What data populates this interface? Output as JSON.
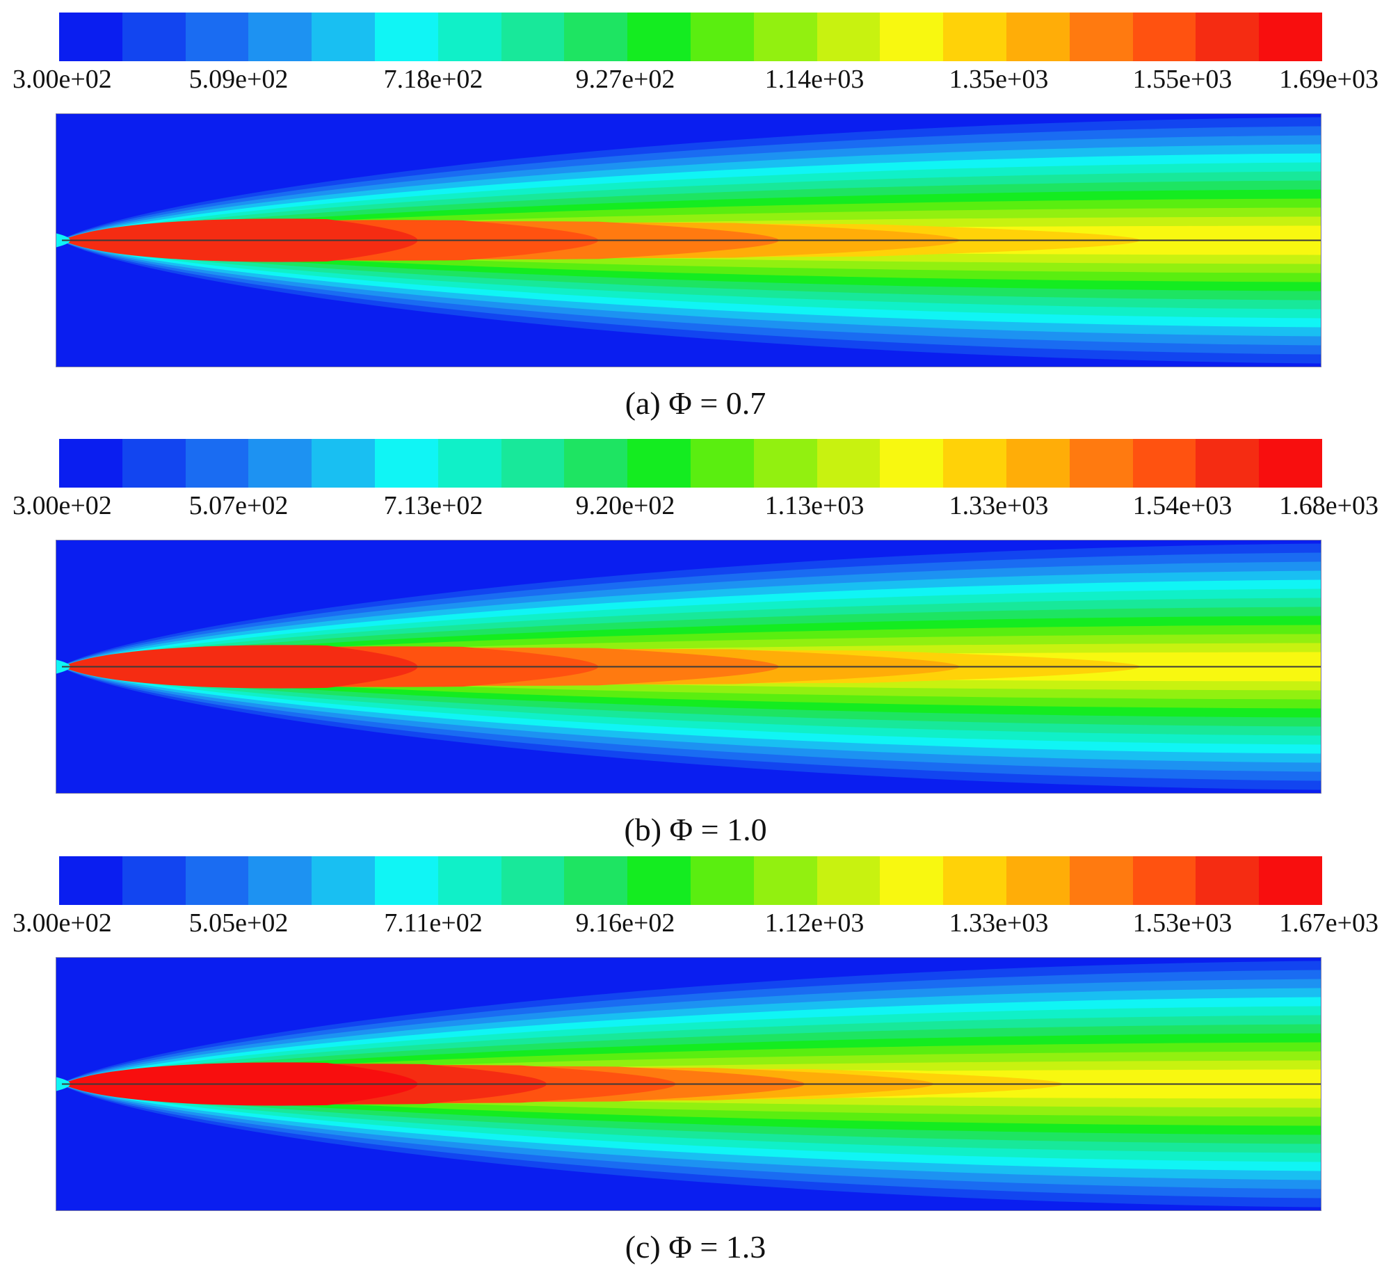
{
  "chart_data": [
    {
      "type": "heatmap",
      "caption": "(a) Φ = 0.7",
      "colorbar": {
        "min": 300,
        "max": 1690,
        "levels": 20,
        "tick_labels": [
          "3.00e+02",
          "5.09e+02",
          "7.18e+02",
          "9.27e+02",
          "1.14e+03",
          "1.35e+03",
          "1.55e+03",
          "1.69e+03"
        ],
        "tick_values": [
          300,
          509,
          718,
          927,
          1140,
          1350,
          1550,
          1690
        ]
      },
      "field": {
        "description_of_core_bands": "peak band values along axis from left to right",
        "axis_band_values": [
          1620,
          1550,
          1480,
          1410,
          1340
        ]
      }
    },
    {
      "type": "heatmap",
      "caption": "(b) Φ = 1.0",
      "colorbar": {
        "min": 300,
        "max": 1680,
        "levels": 20,
        "tick_labels": [
          "3.00e+02",
          "5.07e+02",
          "7.13e+02",
          "9.20e+02",
          "1.13e+03",
          "1.33e+03",
          "1.54e+03",
          "1.68e+03"
        ],
        "tick_values": [
          300,
          507,
          713,
          920,
          1130,
          1330,
          1540,
          1680
        ]
      },
      "field": {
        "description_of_core_bands": "peak band values along axis from left to right",
        "axis_band_values": [
          1610,
          1540,
          1470,
          1400,
          1330
        ]
      }
    },
    {
      "type": "heatmap",
      "caption": "(c) Φ = 1.3",
      "colorbar": {
        "min": 300,
        "max": 1670,
        "levels": 20,
        "tick_labels": [
          "3.00e+02",
          "5.05e+02",
          "7.11e+02",
          "9.16e+02",
          "1.12e+03",
          "1.33e+03",
          "1.53e+03",
          "1.67e+03"
        ],
        "tick_values": [
          300,
          505,
          711,
          916,
          1120,
          1330,
          1530,
          1670
        ]
      },
      "field": {
        "description_of_core_bands": "peak band values along axis from left to right",
        "axis_band_values": [
          1630,
          1560,
          1490,
          1420,
          1350,
          1280,
          1220
        ]
      }
    }
  ],
  "colors": {
    "palette": [
      "#0a1ef0",
      "#1245f0",
      "#1a6cf2",
      "#1d92f2",
      "#19bff2",
      "#10f5f5",
      "#10f0c8",
      "#18e89a",
      "#1ee462",
      "#14ec20",
      "#5aee10",
      "#92f010",
      "#c8f210",
      "#f8f810",
      "#ffd208",
      "#ffad08",
      "#ff7a10",
      "#ff5210",
      "#f52c12",
      "#f80e0e"
    ],
    "centerline": "#3a3a3a",
    "border": "#7a7aa8"
  }
}
